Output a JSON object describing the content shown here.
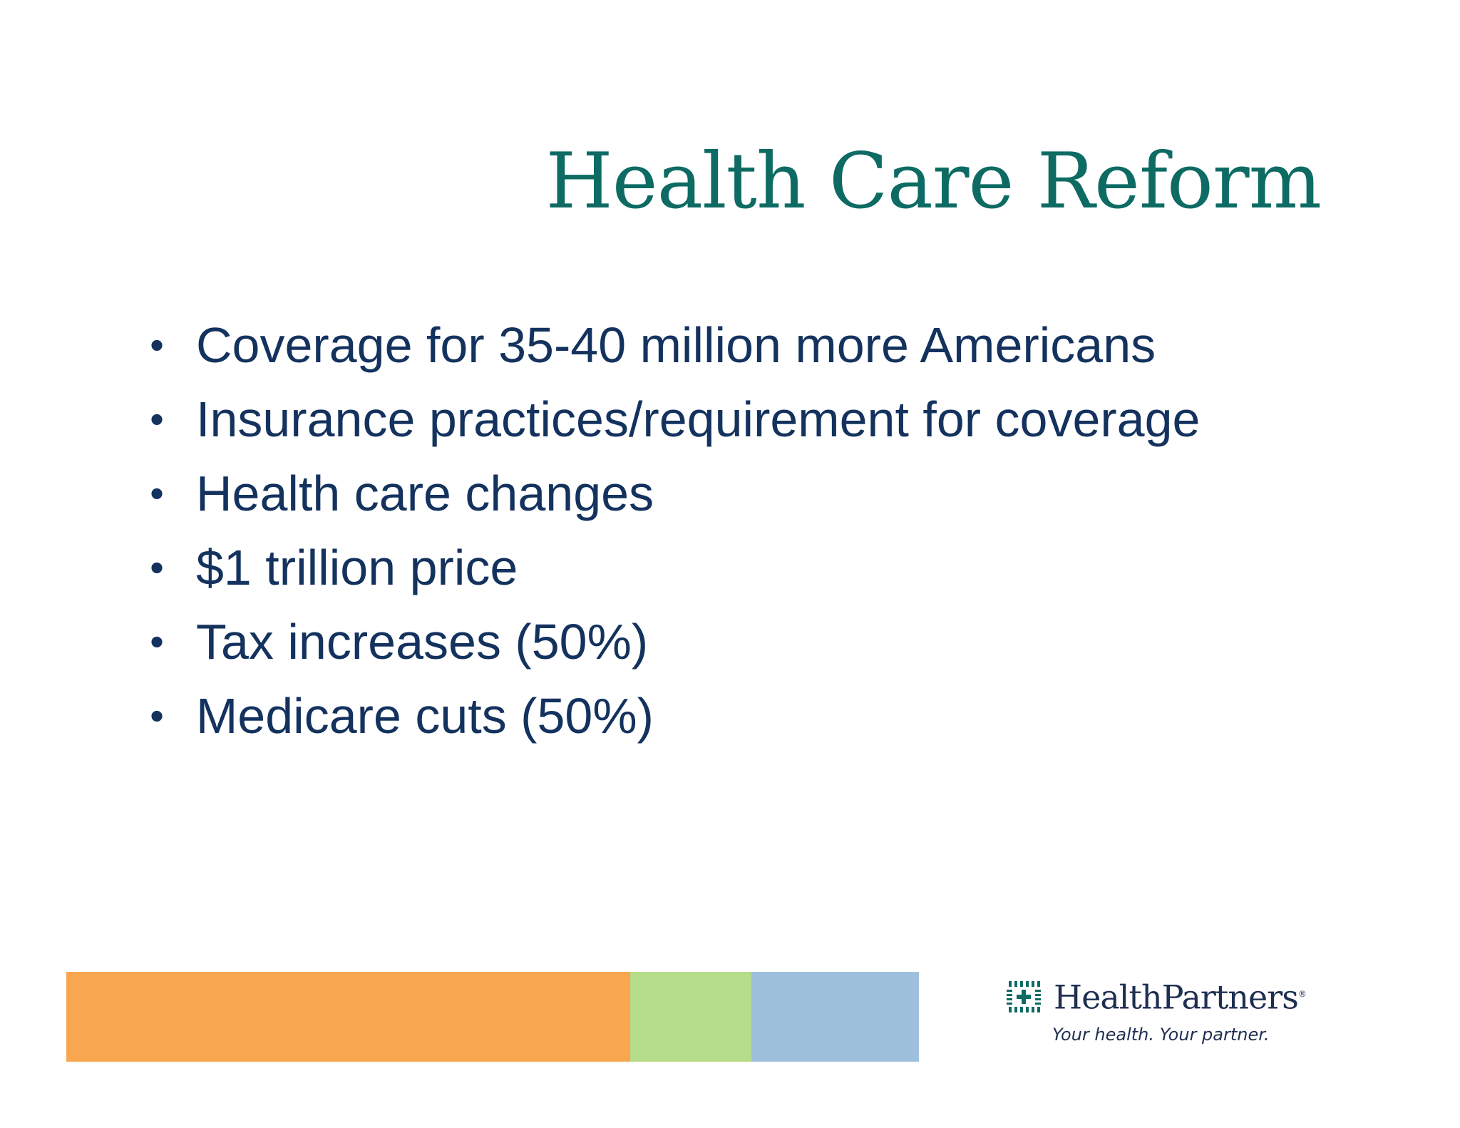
{
  "slide": {
    "title": "Health Care Reform",
    "bullet_symbol": "•",
    "bullets": [
      "Coverage for 35-40 million more Americans",
      "Insurance practices/requirement for coverage",
      "Health care changes",
      "$1 trillion price",
      "Tax increases (50%)",
      "Medicare cuts (50%)"
    ]
  },
  "footer": {
    "band_colors": [
      "#f9a650",
      "#b5dc88",
      "#9fc0dc"
    ],
    "logo": {
      "name": "HealthPartners",
      "registered_mark": "®",
      "tagline": "Your health. Your partner.",
      "mark_color": "#0d6b63"
    }
  },
  "colors": {
    "title": "#0d6b63",
    "body_text": "#14325e"
  }
}
